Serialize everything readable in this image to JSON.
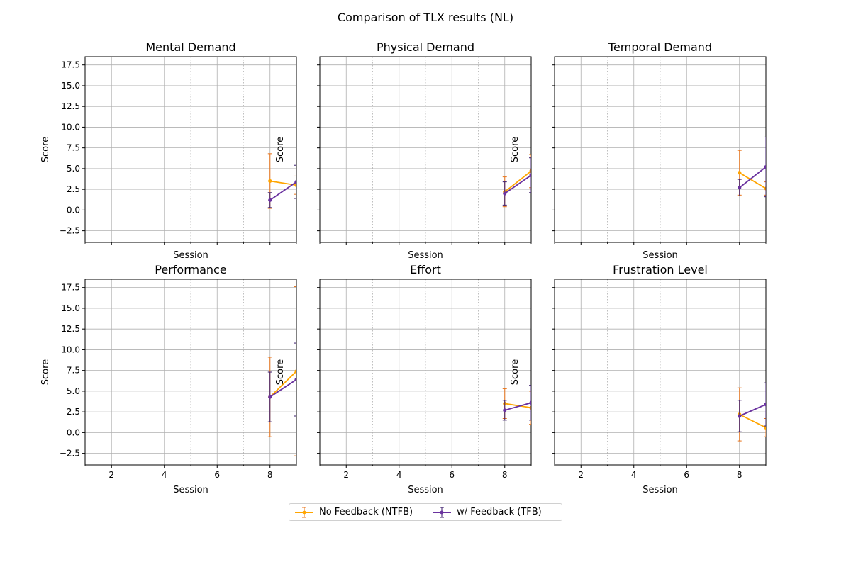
{
  "chart_data": {
    "type": "line",
    "title": "Comparison of TLX results (NL)",
    "x_ticks": [
      2,
      4,
      6,
      8
    ],
    "x_minor_ticks": [
      1,
      3,
      5,
      7,
      9
    ],
    "y_ticks": [
      -2.5,
      0.0,
      2.5,
      5.0,
      7.5,
      10.0,
      12.5,
      15.0,
      17.5
    ],
    "y_tick_labels": [
      "−2.5",
      "0.0",
      "2.5",
      "5.0",
      "7.5",
      "10.0",
      "12.5",
      "15.0",
      "17.5"
    ],
    "xlim": [
      1,
      9
    ],
    "ylim": [
      -3.9,
      18.5
    ],
    "xlabel": "Session",
    "ylabel": "Score",
    "grid": true,
    "legend_placement": "bottom-center",
    "series_styles": [
      {
        "key": "ntfb",
        "name": "No Feedback (NTFB)",
        "color": "#FFA500",
        "err_color": "#E8741A"
      },
      {
        "key": "tfb",
        "name": "w/ Feedback (TFB)",
        "color": "#6A329F",
        "err_color": "#3A1A6A"
      }
    ],
    "subplots": [
      {
        "title": "Mental Demand",
        "ntfb": {
          "x": [
            8,
            9
          ],
          "y": [
            3.5,
            3.0
          ],
          "err": [
            3.3,
            1.1
          ]
        },
        "tfb": {
          "x": [
            8,
            9
          ],
          "y": [
            1.2,
            3.4
          ],
          "err": [
            0.9,
            2.0
          ]
        }
      },
      {
        "title": "Physical Demand",
        "ntfb": {
          "x": [
            8,
            9
          ],
          "y": [
            2.2,
            4.7
          ],
          "err": [
            1.8,
            2.0
          ]
        },
        "tfb": {
          "x": [
            8,
            9
          ],
          "y": [
            2.0,
            4.2
          ],
          "err": [
            1.4,
            2.1
          ]
        }
      },
      {
        "title": "Temporal Demand",
        "ntfb": {
          "x": [
            8,
            9
          ],
          "y": [
            4.5,
            2.6
          ],
          "err": [
            2.7,
            0.8
          ]
        },
        "tfb": {
          "x": [
            8,
            9
          ],
          "y": [
            2.7,
            5.2
          ],
          "err": [
            1.0,
            3.6
          ]
        }
      },
      {
        "title": "Performance",
        "ntfb": {
          "x": [
            8,
            9
          ],
          "y": [
            4.3,
            7.4
          ],
          "err": [
            4.8,
            10.2
          ]
        },
        "tfb": {
          "x": [
            8,
            9
          ],
          "y": [
            4.3,
            6.4
          ],
          "err": [
            3.0,
            4.4
          ]
        }
      },
      {
        "title": "Effort",
        "ntfb": {
          "x": [
            8,
            9
          ],
          "y": [
            3.5,
            3.0
          ],
          "err": [
            1.8,
            2.0
          ]
        },
        "tfb": {
          "x": [
            8,
            9
          ],
          "y": [
            2.7,
            3.6
          ],
          "err": [
            1.2,
            2.1
          ]
        }
      },
      {
        "title": "Frustration Level",
        "ntfb": {
          "x": [
            8,
            9
          ],
          "y": [
            2.2,
            0.6
          ],
          "err": [
            3.2,
            1.1
          ]
        },
        "tfb": {
          "x": [
            8,
            9
          ],
          "y": [
            2.0,
            3.4
          ],
          "err": [
            1.9,
            2.6
          ]
        }
      }
    ]
  }
}
